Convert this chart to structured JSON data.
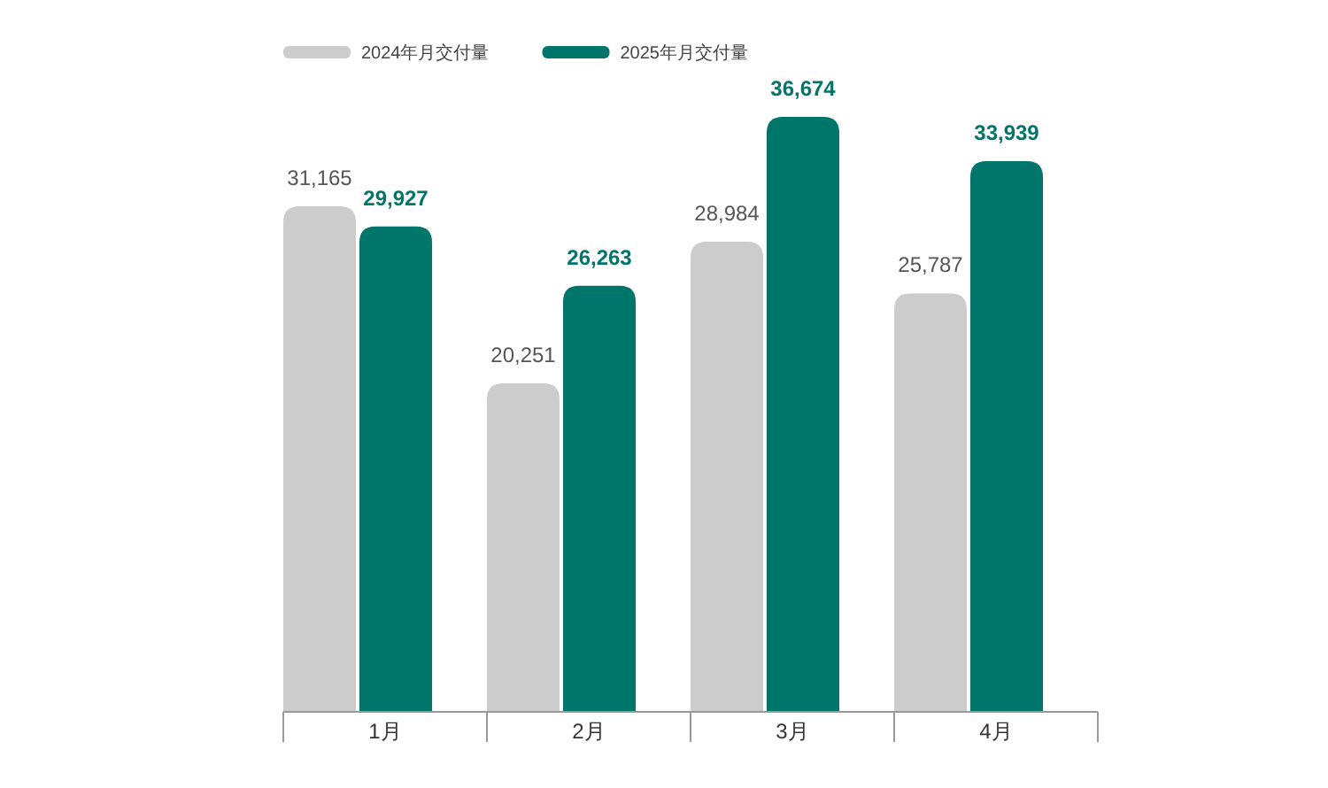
{
  "chart_data": {
    "type": "bar",
    "categories": [
      "1月",
      "2月",
      "3月",
      "4月"
    ],
    "series": [
      {
        "name": "2024年月交付量",
        "color": "#cccccc",
        "values": [
          31165,
          20251,
          28984,
          25787
        ],
        "value_labels": [
          "31,165",
          "20,251",
          "28,984",
          "25,787"
        ]
      },
      {
        "name": "2025年月交付量",
        "color": "#00756a",
        "values": [
          29927,
          26263,
          36674,
          33939
        ],
        "value_labels": [
          "29,927",
          "26,263",
          "36,674",
          "33,939"
        ]
      }
    ],
    "legend": "top left"
  }
}
